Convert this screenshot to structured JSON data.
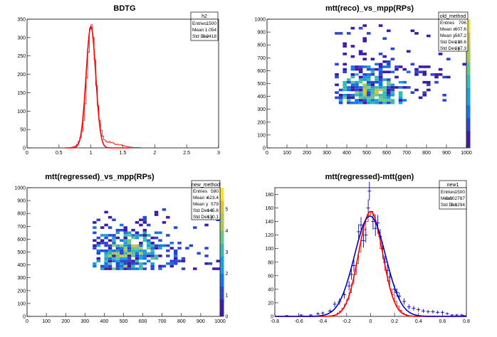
{
  "panels": [
    {
      "title": "BDTG",
      "stats": {
        "name": "h2",
        "rows": [
          [
            "Entries",
            "1500"
          ],
          [
            "Mean",
            "1.054"
          ],
          [
            "Std Dev",
            "0.2418"
          ]
        ]
      }
    },
    {
      "title": "mtt(reco)_vs_mpp(RPs)",
      "stats": {
        "name": "old_method",
        "rows": [
          [
            "Entries",
            "706"
          ],
          [
            "Mean x",
            "607.6"
          ],
          [
            "Mean y",
            "587.2"
          ],
          [
            "Std Dev x",
            "138.6"
          ],
          [
            "Std Dev y",
            "167.3"
          ]
        ]
      }
    },
    {
      "title": "mtt(regressed)_vs_mpp(RPs)",
      "stats": {
        "name": "new_method",
        "rows": [
          [
            "Entries",
            "590"
          ],
          [
            "Mean x",
            "623.4"
          ],
          [
            "Mean y",
            "579"
          ],
          [
            "Std Dev x",
            "145.6"
          ],
          [
            "Std Dev y",
            "130.1"
          ]
        ]
      }
    },
    {
      "title": "mtt(regressed)-mtt(gen)",
      "stats": {
        "name": "new1",
        "rows": [
          [
            "Entries",
            "1500"
          ],
          [
            "Mean",
            "-0.002787"
          ],
          [
            "Std Dev",
            "0.1294"
          ]
        ]
      }
    }
  ],
  "chart_data": [
    {
      "type": "histogram",
      "title": "BDTG",
      "xlim": [
        0,
        3
      ],
      "ylim": [
        0,
        350
      ],
      "xticks": [
        0,
        0.5,
        1,
        1.5,
        2,
        2.5,
        3
      ],
      "yticks": [
        0,
        50,
        100,
        150,
        200,
        250,
        300,
        350
      ],
      "bin_width": 0.025,
      "bins": [
        [
          0.675,
          1
        ],
        [
          0.7,
          2
        ],
        [
          0.725,
          3
        ],
        [
          0.75,
          6
        ],
        [
          0.775,
          10
        ],
        [
          0.8,
          18
        ],
        [
          0.825,
          28
        ],
        [
          0.85,
          45
        ],
        [
          0.875,
          75
        ],
        [
          0.9,
          120
        ],
        [
          0.925,
          190
        ],
        [
          0.95,
          260
        ],
        [
          0.975,
          325
        ],
        [
          1.0,
          335
        ],
        [
          1.025,
          300
        ],
        [
          1.05,
          240
        ],
        [
          1.075,
          170
        ],
        [
          1.1,
          115
        ],
        [
          1.125,
          75
        ],
        [
          1.15,
          48
        ],
        [
          1.175,
          32
        ],
        [
          1.2,
          22
        ],
        [
          1.225,
          18
        ],
        [
          1.25,
          15
        ],
        [
          1.275,
          17
        ],
        [
          1.3,
          14
        ],
        [
          1.325,
          15
        ],
        [
          1.35,
          12
        ],
        [
          1.375,
          9
        ],
        [
          1.4,
          10
        ],
        [
          1.425,
          8
        ],
        [
          1.45,
          9
        ],
        [
          1.475,
          7
        ],
        [
          1.5,
          6
        ],
        [
          1.525,
          5
        ],
        [
          1.55,
          4
        ],
        [
          1.575,
          3
        ],
        [
          1.6,
          2
        ],
        [
          1.625,
          2
        ],
        [
          1.65,
          1
        ],
        [
          1.7,
          1
        ],
        [
          1.75,
          1
        ]
      ],
      "fit": {
        "type": "gaussian",
        "amplitude": 330,
        "mean": 1.0,
        "sigma": 0.075
      },
      "colors": {
        "hist": "#ff0000",
        "fit": "#ff0000"
      }
    },
    {
      "type": "heatmap",
      "title": "mtt(reco)_vs_mpp(RPs)",
      "xlim": [
        0,
        1000
      ],
      "ylim": [
        0,
        1000
      ],
      "zlim": [
        0,
        5
      ],
      "xticks": [
        0,
        100,
        200,
        300,
        400,
        500,
        600,
        700,
        800,
        900,
        1000
      ],
      "yticks": [
        0,
        100,
        200,
        300,
        400,
        500,
        600,
        700,
        800,
        900,
        1000
      ],
      "zticks": [],
      "bin_size": 20,
      "region": {
        "x": [
          340,
          1000
        ],
        "y": [
          340,
          1000
        ]
      }
    },
    {
      "type": "heatmap",
      "title": "mtt(regressed)_vs_mpp(RPs)",
      "xlim": [
        0,
        1000
      ],
      "ylim": [
        0,
        1000
      ],
      "zlim": [
        0,
        6
      ],
      "xticks": [
        0,
        100,
        200,
        300,
        400,
        500,
        600,
        700,
        800,
        900,
        1000
      ],
      "yticks": [
        0,
        100,
        200,
        300,
        400,
        500,
        600,
        700,
        800,
        900,
        1000
      ],
      "zticks": [
        0,
        1,
        2,
        3,
        4,
        5
      ],
      "bin_size": 20,
      "region": {
        "x": [
          340,
          1000
        ],
        "y": [
          360,
          840
        ]
      }
    },
    {
      "type": "histogram",
      "title": "mtt(regressed)-mtt(gen)",
      "xlim": [
        -0.8,
        0.8
      ],
      "ylim": [
        0,
        190
      ],
      "xticks": [
        -0.8,
        -0.6,
        -0.4,
        -0.2,
        0,
        0.2,
        0.4,
        0.6,
        0.8
      ],
      "yticks": [
        0,
        20,
        40,
        60,
        80,
        100,
        120,
        140,
        160,
        180
      ],
      "bin_width": 0.02,
      "bins": [
        [
          -0.3,
          2
        ],
        [
          -0.28,
          5
        ],
        [
          -0.26,
          8
        ],
        [
          -0.24,
          12
        ],
        [
          -0.22,
          18
        ],
        [
          -0.2,
          25
        ],
        [
          -0.18,
          35
        ],
        [
          -0.16,
          48
        ],
        [
          -0.14,
          62
        ],
        [
          -0.12,
          78
        ],
        [
          -0.1,
          95
        ],
        [
          -0.08,
          112
        ],
        [
          -0.06,
          128
        ],
        [
          -0.04,
          140
        ],
        [
          -0.02,
          150
        ],
        [
          0.0,
          155
        ],
        [
          0.02,
          150
        ],
        [
          0.04,
          138
        ],
        [
          0.06,
          122
        ],
        [
          0.08,
          100
        ],
        [
          0.1,
          85
        ],
        [
          0.12,
          68
        ],
        [
          0.14,
          52
        ],
        [
          0.16,
          40
        ],
        [
          0.18,
          32
        ],
        [
          0.2,
          22
        ],
        [
          0.22,
          15
        ],
        [
          0.24,
          9
        ],
        [
          0.26,
          5
        ],
        [
          0.28,
          3
        ]
      ],
      "points": [
        [
          -0.7,
          1
        ],
        [
          -0.58,
          2
        ],
        [
          -0.5,
          2
        ],
        [
          -0.44,
          4
        ],
        [
          -0.4,
          5
        ],
        [
          -0.34,
          8
        ],
        [
          -0.3,
          18
        ],
        [
          -0.26,
          22
        ],
        [
          -0.22,
          32
        ],
        [
          -0.18,
          45
        ],
        [
          -0.16,
          62
        ],
        [
          -0.14,
          75
        ],
        [
          -0.1,
          125
        ],
        [
          -0.08,
          135
        ],
        [
          -0.06,
          112
        ],
        [
          -0.04,
          120
        ],
        [
          -0.02,
          160
        ],
        [
          -0.01,
          185
        ],
        [
          0.02,
          140
        ],
        [
          0.04,
          130
        ],
        [
          0.06,
          138
        ],
        [
          0.08,
          118
        ],
        [
          0.1,
          100
        ],
        [
          0.12,
          80
        ],
        [
          0.14,
          68
        ],
        [
          0.16,
          58
        ],
        [
          0.2,
          40
        ],
        [
          0.22,
          35
        ],
        [
          0.24,
          30
        ],
        [
          0.28,
          22
        ],
        [
          0.32,
          14
        ],
        [
          0.36,
          12
        ],
        [
          0.4,
          10
        ],
        [
          0.44,
          8
        ],
        [
          0.48,
          7
        ],
        [
          0.52,
          7
        ],
        [
          0.56,
          6
        ],
        [
          0.6,
          6
        ],
        [
          0.64,
          4
        ],
        [
          0.68,
          2
        ],
        [
          0.72,
          2
        ],
        [
          0.76,
          2
        ],
        [
          0.78,
          1
        ]
      ],
      "fits": [
        {
          "type": "gaussian",
          "amplitude": 155,
          "mean": 0.0,
          "sigma": 0.1,
          "color": "#ff0000"
        },
        {
          "type": "gaussian",
          "amplitude": 148,
          "mean": -0.005,
          "sigma": 0.13,
          "color": "#0000cc"
        }
      ],
      "colors": {
        "hist": "#ff0000",
        "points": "#0000cc"
      }
    }
  ]
}
